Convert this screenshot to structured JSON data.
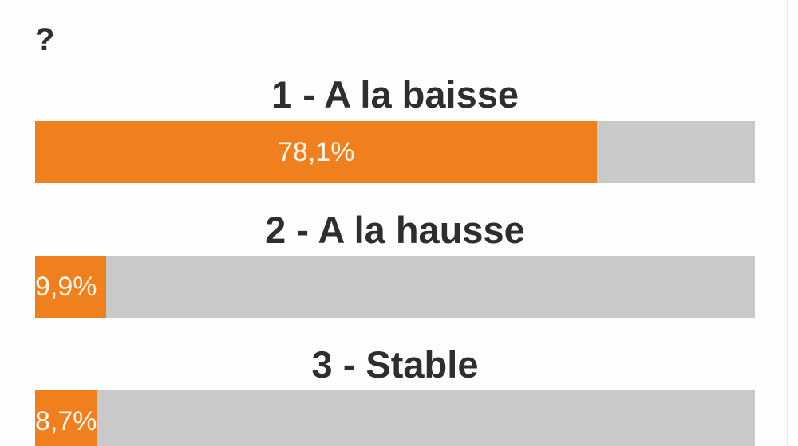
{
  "question": {
    "visible_text": "?"
  },
  "options": [
    {
      "label": "1 - A la baisse",
      "value_text": "78,1%",
      "percent": 78.1
    },
    {
      "label": "2 - A la hausse",
      "value_text": "9,9%",
      "percent": 9.9
    },
    {
      "label": "3 - Stable",
      "value_text": "8,7%",
      "percent": 8.7
    }
  ],
  "colors": {
    "fill": "#f07f1e",
    "track": "#c9c9c9",
    "text": "#2e2e2e",
    "value_text": "#fff7ea"
  }
}
